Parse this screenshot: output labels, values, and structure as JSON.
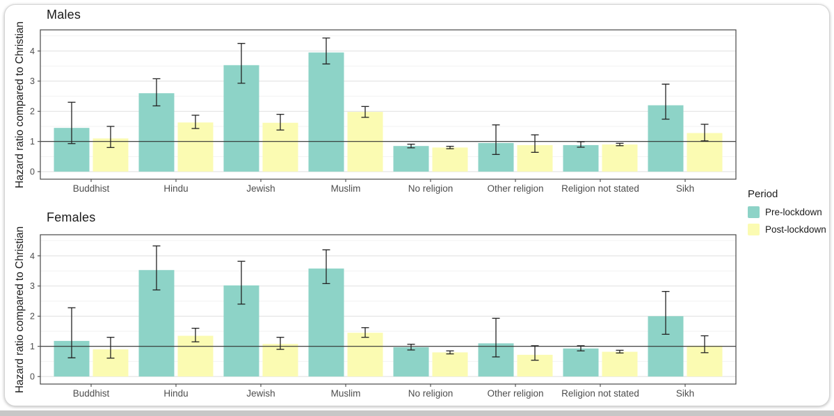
{
  "legend": {
    "title": "Period",
    "items": [
      {
        "label": "Pre-lockdown",
        "color": "#8DD3C7"
      },
      {
        "label": "Post-lockdown",
        "color": "#FBFBB2"
      }
    ]
  },
  "colors": {
    "pre_lockdown": "#8DD3C7",
    "post_lockdown": "#FBFBB2",
    "grid_major": "#e3e3e3",
    "grid_minor": "#f2f2f2",
    "panel_border": "#474747",
    "reference_line": "#2f2f2f",
    "error_bar": "#222222",
    "axis_text": "#4d4d4d"
  },
  "chart_data": [
    {
      "type": "bar",
      "facet": "Males",
      "ylabel": "Hazard ratio compared to Christian",
      "xlabel": "",
      "grid": true,
      "legend_position": "right",
      "reference_line_y": 1,
      "yticks": [
        0,
        1,
        2,
        3,
        4
      ],
      "ylim": [
        -0.25,
        4.7
      ],
      "categories": [
        "Buddhist",
        "Hindu",
        "Jewish",
        "Muslim",
        "No religion",
        "Other religion",
        "Religion not stated",
        "Sikh"
      ],
      "series": [
        {
          "name": "Pre-lockdown",
          "color": "#8DD3C7",
          "values": [
            1.45,
            2.6,
            3.53,
            3.95,
            0.85,
            0.95,
            0.88,
            2.2
          ],
          "ci_low": [
            0.93,
            2.18,
            2.93,
            3.57,
            0.79,
            0.57,
            0.81,
            1.74
          ],
          "ci_high": [
            2.3,
            3.08,
            4.25,
            4.43,
            0.91,
            1.55,
            0.99,
            2.9
          ]
        },
        {
          "name": "Post-lockdown",
          "color": "#FBFBB2",
          "values": [
            1.1,
            1.63,
            1.62,
            1.98,
            0.8,
            0.88,
            0.9,
            1.28
          ],
          "ci_low": [
            0.8,
            1.43,
            1.38,
            1.8,
            0.76,
            0.64,
            0.86,
            1.02
          ],
          "ci_high": [
            1.5,
            1.87,
            1.9,
            2.16,
            0.84,
            1.22,
            0.94,
            1.57
          ]
        }
      ]
    },
    {
      "type": "bar",
      "facet": "Females",
      "ylabel": "Hazard ratio compared to Christian",
      "xlabel": "",
      "grid": true,
      "legend_position": "right",
      "reference_line_y": 1,
      "yticks": [
        0,
        1,
        2,
        3,
        4
      ],
      "ylim": [
        -0.25,
        4.7
      ],
      "categories": [
        "Buddhist",
        "Hindu",
        "Jewish",
        "Muslim",
        "No religion",
        "Other religion",
        "Religion not stated",
        "Sikh"
      ],
      "series": [
        {
          "name": "Pre-lockdown",
          "color": "#8DD3C7",
          "values": [
            1.18,
            3.53,
            3.02,
            3.58,
            0.97,
            1.1,
            0.93,
            2.0
          ],
          "ci_low": [
            0.62,
            2.87,
            2.4,
            3.08,
            0.88,
            0.65,
            0.85,
            1.4
          ],
          "ci_high": [
            2.28,
            4.33,
            3.82,
            4.2,
            1.07,
            1.93,
            1.02,
            2.82
          ]
        },
        {
          "name": "Post-lockdown",
          "color": "#FBFBB2",
          "values": [
            0.9,
            1.35,
            1.08,
            1.45,
            0.8,
            0.72,
            0.82,
            1.02
          ],
          "ci_low": [
            0.61,
            1.15,
            0.9,
            1.3,
            0.75,
            0.54,
            0.78,
            0.79
          ],
          "ci_high": [
            1.3,
            1.6,
            1.3,
            1.62,
            0.85,
            1.02,
            0.87,
            1.35
          ]
        }
      ]
    }
  ]
}
